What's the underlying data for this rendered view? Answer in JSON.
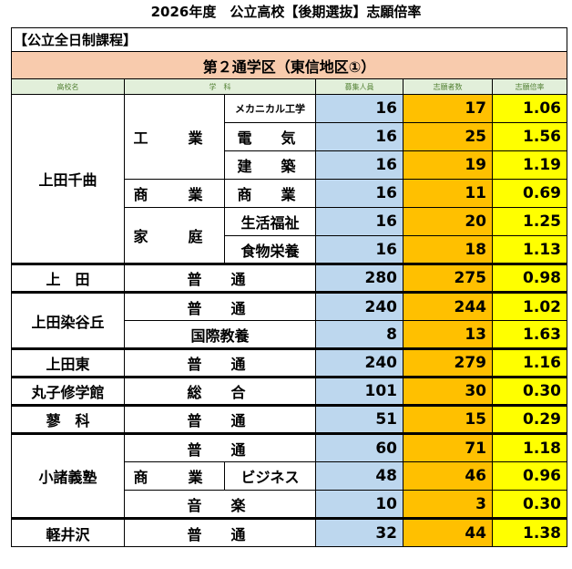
{
  "title": "2026年度　公立高校【後期選抜】志願倍率",
  "section_label": "【公立全日制課程】",
  "district": "第２通学区（東信地区①）",
  "headers": {
    "school": "高校名",
    "dept": "学　科",
    "capacity": "募集人員",
    "applicants": "志願者数",
    "ratio": "志願倍率"
  },
  "rows": {
    "r1": {
      "school": "上田千曲",
      "dept": "工　業",
      "course": "メカニカル工学",
      "capacity": "16",
      "applicants": "17",
      "ratio": "1.06"
    },
    "r2": {
      "course": "電　気",
      "capacity": "16",
      "applicants": "25",
      "ratio": "1.56"
    },
    "r3": {
      "course": "建　築",
      "capacity": "16",
      "applicants": "19",
      "ratio": "1.19"
    },
    "r4": {
      "dept": "商　業",
      "course": "商　業",
      "capacity": "16",
      "applicants": "11",
      "ratio": "0.69"
    },
    "r5": {
      "dept": "家　庭",
      "course": "生活福祉",
      "capacity": "16",
      "applicants": "20",
      "ratio": "1.25"
    },
    "r6": {
      "course": "食物栄養",
      "capacity": "16",
      "applicants": "18",
      "ratio": "1.13"
    },
    "r7": {
      "school": "上　田",
      "course": "普　通",
      "capacity": "280",
      "applicants": "275",
      "ratio": "0.98"
    },
    "r8": {
      "school": "上田染谷丘",
      "course": "普　通",
      "capacity": "240",
      "applicants": "244",
      "ratio": "1.02"
    },
    "r9": {
      "course": "国際教養",
      "capacity": "8",
      "applicants": "13",
      "ratio": "1.63"
    },
    "r10": {
      "school": "上田東",
      "course": "普　通",
      "capacity": "240",
      "applicants": "279",
      "ratio": "1.16"
    },
    "r11": {
      "school": "丸子修学館",
      "course": "総　合",
      "capacity": "101",
      "applicants": "30",
      "ratio": "0.30"
    },
    "r12": {
      "school": "蓼　科",
      "course": "普　通",
      "capacity": "51",
      "applicants": "15",
      "ratio": "0.29"
    },
    "r13": {
      "school": "小諸義塾",
      "course": "普　通",
      "capacity": "60",
      "applicants": "71",
      "ratio": "1.18"
    },
    "r14": {
      "dept": "商　業",
      "course": "ビジネス",
      "capacity": "48",
      "applicants": "46",
      "ratio": "0.96"
    },
    "r15": {
      "course": "音　楽",
      "capacity": "10",
      "applicants": "3",
      "ratio": "0.30"
    },
    "r16": {
      "school": "軽井沢",
      "course": "普　通",
      "capacity": "32",
      "applicants": "44",
      "ratio": "1.38"
    }
  },
  "colors": {
    "district_bg": "#f8cbad",
    "header_bg": "#e2efda",
    "header_text": "#548235",
    "capacity_bg": "#bdd7ee",
    "applicants_bg": "#ffc000",
    "ratio_bg": "#ffff00"
  }
}
